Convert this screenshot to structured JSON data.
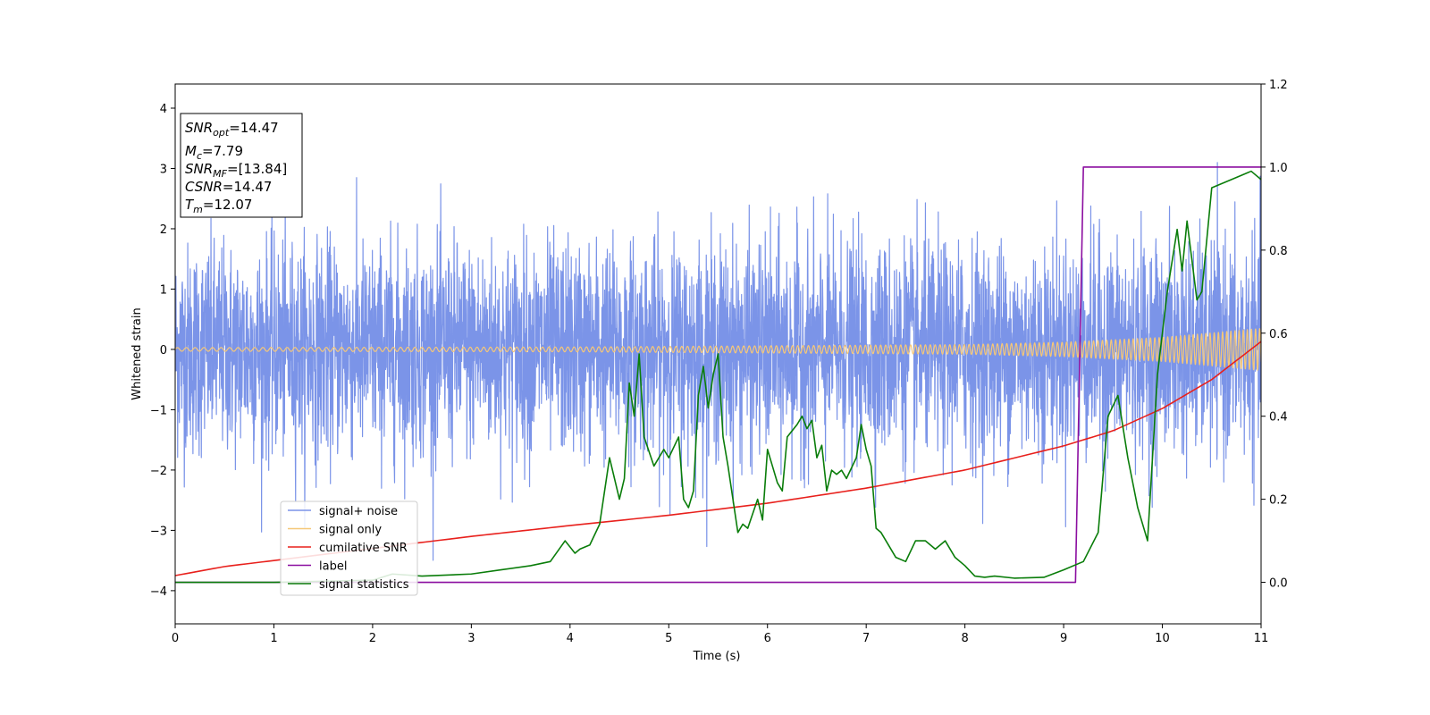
{
  "chart_data": {
    "type": "line",
    "title": "",
    "xlabel": "Time (s)",
    "ylabel": "Whitened strain",
    "xlim": [
      0,
      11
    ],
    "ylim": [
      -4.55,
      4.4
    ],
    "y2lim": [
      -0.1,
      1.2
    ],
    "x_ticks": [
      "0",
      "1",
      "2",
      "3",
      "4",
      "5",
      "6",
      "7",
      "8",
      "9",
      "10",
      "11"
    ],
    "y_ticks": [
      "−4",
      "−3",
      "−2",
      "−1",
      "0",
      "1",
      "2",
      "3",
      "4"
    ],
    "y2_ticks": [
      "0.0",
      "0.2",
      "0.4",
      "0.6",
      "0.8",
      "1.0",
      "1.2"
    ],
    "grid": false,
    "legend_position": "lower-left",
    "info_box": {
      "lines": [
        {
          "sym": "SNR",
          "sub": "opt",
          "value": "=14.47"
        },
        {
          "sym": "M",
          "sub": "c",
          "value": "=7.79"
        },
        {
          "sym": "SNR",
          "sub": "MF",
          "value": "=[13.84]"
        },
        {
          "sym": "CSNR",
          "sub": "",
          "value": "=14.47"
        },
        {
          "sym": "T",
          "sub": "m",
          "value": "=12.07"
        }
      ]
    },
    "series": [
      {
        "name": "signal+ noise",
        "color": "#7b94e8",
        "axis": "left",
        "kind": "noise",
        "envelope": {
          "upper_typical": 2.0,
          "lower_typical": -2.0,
          "peak_high": 3.48,
          "peak_low": -4.15
        }
      },
      {
        "name": "signal only",
        "color": "#f5c778",
        "axis": "left",
        "kind": "chirp",
        "amplitude": {
          "x": [
            0,
            4,
            8,
            9,
            10,
            11
          ],
          "y": [
            0.03,
            0.04,
            0.08,
            0.12,
            0.2,
            0.35
          ]
        }
      },
      {
        "name": "cumilative SNR",
        "color": "#e8201c",
        "axis": "left",
        "x": [
          0,
          0.5,
          1,
          2,
          3,
          4,
          5,
          6,
          7,
          8,
          9,
          9.5,
          10,
          10.5,
          11
        ],
        "y": [
          -3.75,
          -3.6,
          -3.5,
          -3.3,
          -3.1,
          -2.92,
          -2.75,
          -2.55,
          -2.3,
          -2.0,
          -1.6,
          -1.35,
          -0.98,
          -0.5,
          0.13
        ]
      },
      {
        "name": "label",
        "color": "#8b0ea0",
        "axis": "right",
        "x": [
          0,
          9.12,
          9.2,
          11
        ],
        "y": [
          0.0,
          0.0,
          1.0,
          1.0
        ]
      },
      {
        "name": "signal statistics",
        "color": "#0a7d0a",
        "axis": "right",
        "x": [
          0,
          1.0,
          2.0,
          2.2,
          2.5,
          3.0,
          3.3,
          3.6,
          3.8,
          3.95,
          4.05,
          4.1,
          4.2,
          4.3,
          4.4,
          4.5,
          4.55,
          4.6,
          4.65,
          4.7,
          4.75,
          4.85,
          4.95,
          5.0,
          5.1,
          5.15,
          5.2,
          5.25,
          5.3,
          5.35,
          5.4,
          5.45,
          5.5,
          5.55,
          5.6,
          5.7,
          5.75,
          5.8,
          5.9,
          5.95,
          6.0,
          6.05,
          6.1,
          6.15,
          6.2,
          6.3,
          6.35,
          6.4,
          6.45,
          6.5,
          6.55,
          6.6,
          6.65,
          6.7,
          6.75,
          6.8,
          6.9,
          6.95,
          7.0,
          7.05,
          7.1,
          7.15,
          7.2,
          7.3,
          7.4,
          7.5,
          7.6,
          7.7,
          7.8,
          7.9,
          8.0,
          8.1,
          8.2,
          8.3,
          8.5,
          8.8,
          9.0,
          9.2,
          9.35,
          9.45,
          9.55,
          9.65,
          9.75,
          9.85,
          9.95,
          10.05,
          10.15,
          10.2,
          10.25,
          10.35,
          10.4,
          10.5,
          10.7,
          10.9,
          11.0
        ],
        "y": [
          0.0,
          0.0,
          0.005,
          0.02,
          0.015,
          0.02,
          0.03,
          0.04,
          0.05,
          0.1,
          0.07,
          0.08,
          0.09,
          0.14,
          0.3,
          0.2,
          0.25,
          0.48,
          0.4,
          0.55,
          0.35,
          0.28,
          0.32,
          0.3,
          0.35,
          0.2,
          0.18,
          0.22,
          0.45,
          0.52,
          0.42,
          0.5,
          0.55,
          0.35,
          0.28,
          0.12,
          0.14,
          0.13,
          0.2,
          0.15,
          0.32,
          0.28,
          0.24,
          0.22,
          0.35,
          0.38,
          0.4,
          0.37,
          0.39,
          0.3,
          0.33,
          0.22,
          0.27,
          0.26,
          0.27,
          0.25,
          0.3,
          0.38,
          0.32,
          0.28,
          0.13,
          0.12,
          0.1,
          0.06,
          0.05,
          0.1,
          0.1,
          0.08,
          0.1,
          0.06,
          0.04,
          0.015,
          0.012,
          0.015,
          0.01,
          0.012,
          0.03,
          0.05,
          0.12,
          0.4,
          0.45,
          0.3,
          0.18,
          0.1,
          0.5,
          0.7,
          0.85,
          0.75,
          0.87,
          0.68,
          0.7,
          0.95,
          0.97,
          0.99,
          0.97
        ]
      }
    ]
  }
}
